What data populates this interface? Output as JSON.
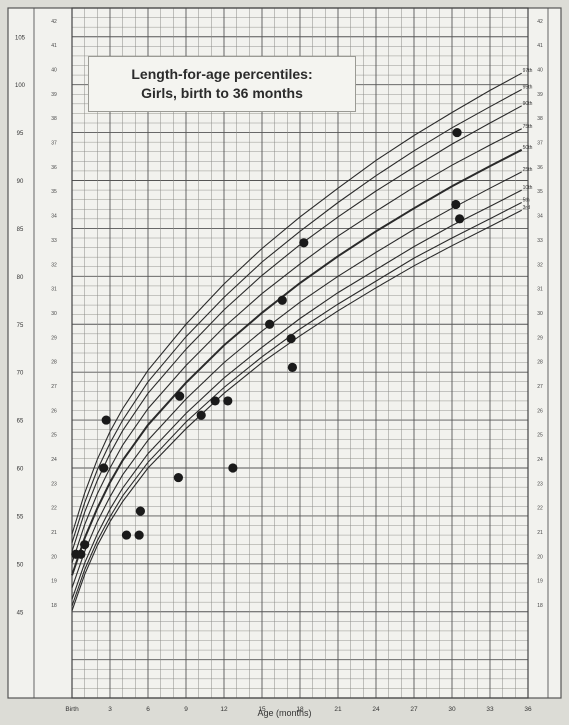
{
  "chart_data": {
    "type": "scatter",
    "title": "Length-for-age percentiles:",
    "subtitle": "Girls, birth to 36 months",
    "xlabel": "Age (months)",
    "ylabel": "",
    "xlim": [
      0,
      36
    ],
    "ylim": [
      36,
      108
    ],
    "x_ticks": [
      {
        "v": 0,
        "label": "Birth"
      },
      {
        "v": 3,
        "label": "3"
      },
      {
        "v": 6,
        "label": "6"
      },
      {
        "v": 9,
        "label": "9"
      },
      {
        "v": 12,
        "label": "12"
      },
      {
        "v": 15,
        "label": "15"
      },
      {
        "v": 18,
        "label": "18"
      },
      {
        "v": 21,
        "label": "21"
      },
      {
        "v": 24,
        "label": "24"
      },
      {
        "v": 27,
        "label": "27"
      },
      {
        "v": 30,
        "label": "30"
      },
      {
        "v": 33,
        "label": "33"
      },
      {
        "v": 36,
        "label": "36"
      }
    ],
    "y_ticks_left": [
      {
        "v": 45,
        "label": "45"
      },
      {
        "v": 50,
        "label": "50"
      },
      {
        "v": 55,
        "label": "55"
      },
      {
        "v": 60,
        "label": "60"
      },
      {
        "v": 65,
        "label": "65"
      },
      {
        "v": 70,
        "label": "70"
      },
      {
        "v": 75,
        "label": "75"
      },
      {
        "v": 80,
        "label": "80"
      },
      {
        "v": 85,
        "label": "85"
      },
      {
        "v": 90,
        "label": "90"
      },
      {
        "v": 95,
        "label": "95"
      },
      {
        "v": 100,
        "label": "100"
      },
      {
        "v": 105,
        "label": "105"
      }
    ],
    "y_ticks_inches": [
      {
        "v": 45.72,
        "label": "18"
      },
      {
        "v": 48.26,
        "label": "19"
      },
      {
        "v": 50.8,
        "label": "20"
      },
      {
        "v": 53.34,
        "label": "21"
      },
      {
        "v": 55.88,
        "label": "22"
      },
      {
        "v": 58.42,
        "label": "23"
      },
      {
        "v": 60.96,
        "label": "24"
      },
      {
        "v": 63.5,
        "label": "25"
      },
      {
        "v": 66.04,
        "label": "26"
      },
      {
        "v": 68.58,
        "label": "27"
      },
      {
        "v": 71.12,
        "label": "28"
      },
      {
        "v": 73.66,
        "label": "29"
      },
      {
        "v": 76.2,
        "label": "30"
      },
      {
        "v": 78.74,
        "label": "31"
      },
      {
        "v": 81.28,
        "label": "32"
      },
      {
        "v": 83.82,
        "label": "33"
      },
      {
        "v": 86.36,
        "label": "34"
      },
      {
        "v": 88.9,
        "label": "35"
      },
      {
        "v": 91.44,
        "label": "36"
      },
      {
        "v": 93.98,
        "label": "37"
      },
      {
        "v": 96.52,
        "label": "38"
      },
      {
        "v": 99.06,
        "label": "39"
      },
      {
        "v": 101.6,
        "label": "40"
      },
      {
        "v": 104.14,
        "label": "41"
      },
      {
        "v": 106.68,
        "label": "42"
      }
    ],
    "grid": true,
    "percentile_curves": [
      {
        "name": "97th",
        "x": [
          0,
          1,
          2,
          3,
          4,
          6,
          9,
          12,
          15,
          18,
          21,
          24,
          27,
          30,
          33,
          35.5
        ],
        "y": [
          53.1,
          57.4,
          60.9,
          63.8,
          66.2,
          70.2,
          75.0,
          79.2,
          82.9,
          86.2,
          89.2,
          92.1,
          94.7,
          97.1,
          99.4,
          101.2
        ]
      },
      {
        "name": "95th",
        "x": [
          0,
          1,
          2,
          3,
          4,
          6,
          9,
          12,
          15,
          18,
          21,
          24,
          27,
          30,
          33,
          35.5
        ],
        "y": [
          52.2,
          56.4,
          59.8,
          62.6,
          65.0,
          69.0,
          73.7,
          77.8,
          81.5,
          84.7,
          87.7,
          90.5,
          93.1,
          95.5,
          97.7,
          99.5
        ]
      },
      {
        "name": "90th",
        "x": [
          0,
          1,
          2,
          3,
          4,
          6,
          9,
          12,
          15,
          18,
          21,
          24,
          27,
          30,
          33,
          35.5
        ],
        "y": [
          51.3,
          55.4,
          58.7,
          61.5,
          63.9,
          67.8,
          72.4,
          76.5,
          80.1,
          83.3,
          86.2,
          88.9,
          91.4,
          93.8,
          96.0,
          97.8
        ]
      },
      {
        "name": "75th",
        "x": [
          0,
          1,
          2,
          3,
          4,
          6,
          9,
          12,
          15,
          18,
          21,
          24,
          27,
          30,
          33,
          35.5
        ],
        "y": [
          50.1,
          54.1,
          57.3,
          60.0,
          62.4,
          66.2,
          70.7,
          74.7,
          78.2,
          81.3,
          84.2,
          86.8,
          89.3,
          91.6,
          93.7,
          95.4
        ]
      },
      {
        "name": "50th",
        "x": [
          0,
          1,
          2,
          3,
          4,
          6,
          9,
          12,
          15,
          18,
          21,
          24,
          27,
          30,
          33,
          35.5
        ],
        "y": [
          48.8,
          52.7,
          55.8,
          58.5,
          60.8,
          64.5,
          68.9,
          72.8,
          76.2,
          79.3,
          82.1,
          84.7,
          87.1,
          89.4,
          91.5,
          93.2
        ]
      },
      {
        "name": "25th",
        "x": [
          0,
          1,
          2,
          3,
          4,
          6,
          9,
          12,
          15,
          18,
          21,
          24,
          27,
          30,
          33,
          35.5
        ],
        "y": [
          47.5,
          51.3,
          54.4,
          57.0,
          59.3,
          62.9,
          67.2,
          71.0,
          74.3,
          77.3,
          80.0,
          82.5,
          84.9,
          87.1,
          89.2,
          90.9
        ]
      },
      {
        "name": "10th",
        "x": [
          0,
          1,
          2,
          3,
          4,
          6,
          9,
          12,
          15,
          18,
          21,
          24,
          27,
          30,
          33,
          35.5
        ],
        "y": [
          46.3,
          50.1,
          53.1,
          55.7,
          57.9,
          61.5,
          65.7,
          69.4,
          72.6,
          75.6,
          78.3,
          80.7,
          83.1,
          85.3,
          87.3,
          89.0
        ]
      },
      {
        "name": "5th",
        "x": [
          0,
          1,
          2,
          3,
          4,
          6,
          9,
          12,
          15,
          18,
          21,
          24,
          27,
          30,
          33,
          35.5
        ],
        "y": [
          45.6,
          49.4,
          52.4,
          54.9,
          57.1,
          60.6,
          64.8,
          68.4,
          71.6,
          74.5,
          77.1,
          79.5,
          81.9,
          84.0,
          86.0,
          87.7
        ]
      },
      {
        "name": "3rd",
        "x": [
          0,
          1,
          2,
          3,
          4,
          6,
          9,
          12,
          15,
          18,
          21,
          24,
          27,
          30,
          33,
          35.5
        ],
        "y": [
          45.1,
          48.9,
          51.9,
          54.4,
          56.5,
          60.0,
          64.1,
          67.8,
          71.0,
          73.8,
          76.4,
          78.8,
          81.1,
          83.2,
          85.2,
          86.9
        ]
      }
    ],
    "points": [
      {
        "x": 0.3,
        "y": 51.0
      },
      {
        "x": 0.7,
        "y": 51.0
      },
      {
        "x": 1.0,
        "y": 52.0
      },
      {
        "x": 2.5,
        "y": 60.0
      },
      {
        "x": 2.7,
        "y": 65.0
      },
      {
        "x": 4.3,
        "y": 53.0
      },
      {
        "x": 5.3,
        "y": 53.0
      },
      {
        "x": 5.4,
        "y": 55.5
      },
      {
        "x": 8.4,
        "y": 59.0
      },
      {
        "x": 8.5,
        "y": 67.5
      },
      {
        "x": 10.2,
        "y": 65.5
      },
      {
        "x": 11.3,
        "y": 67.0
      },
      {
        "x": 12.3,
        "y": 67.0
      },
      {
        "x": 12.7,
        "y": 60.0
      },
      {
        "x": 15.6,
        "y": 75.0
      },
      {
        "x": 16.6,
        "y": 77.5
      },
      {
        "x": 17.3,
        "y": 73.5
      },
      {
        "x": 17.4,
        "y": 70.5
      },
      {
        "x": 18.3,
        "y": 83.5
      },
      {
        "x": 30.3,
        "y": 87.5
      },
      {
        "x": 30.4,
        "y": 95.0
      },
      {
        "x": 30.6,
        "y": 86.0
      }
    ]
  }
}
